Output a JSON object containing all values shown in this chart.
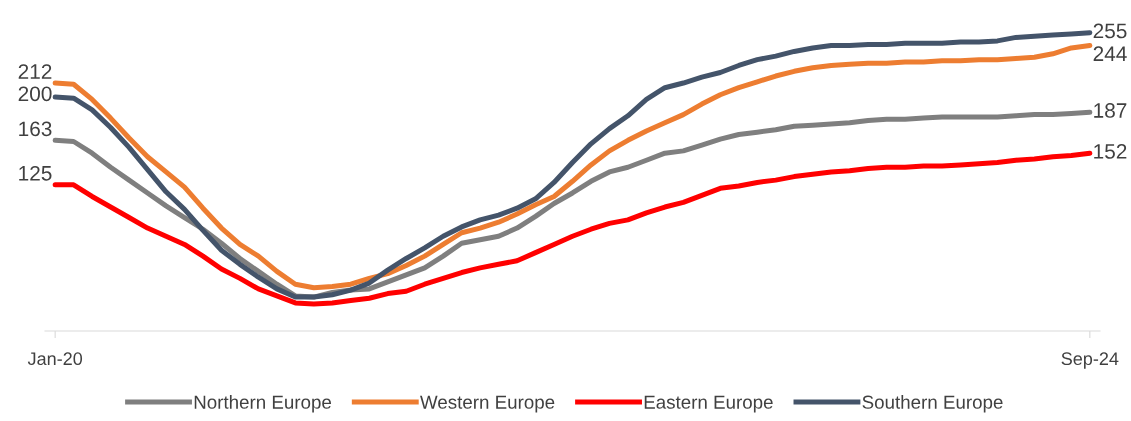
{
  "chart_data": {
    "type": "line",
    "categories": [
      "Jan-20",
      null,
      null,
      null,
      null,
      null,
      null,
      null,
      null,
      null,
      null,
      null,
      null,
      null,
      null,
      null,
      null,
      null,
      null,
      null,
      null,
      null,
      null,
      null,
      null,
      null,
      null,
      null,
      null,
      null,
      null,
      null,
      null,
      null,
      null,
      null,
      null,
      null,
      null,
      null,
      null,
      null,
      null,
      null,
      null,
      null,
      null,
      null,
      null,
      null,
      null,
      null,
      null,
      null,
      null,
      null,
      "Sep-24"
    ],
    "tick_labels": "x",
    "legend": "bottom",
    "series": [
      {
        "name": "Northern Europe",
        "color": "#7f7f7f",
        "values": [
          163,
          162,
          152,
          140,
          129,
          118,
          107,
          97,
          87,
          75,
          62,
          51,
          40,
          30,
          29,
          33,
          35,
          36,
          42,
          48,
          54,
          64,
          75,
          78,
          81,
          88,
          98,
          109,
          118,
          128,
          136,
          140,
          146,
          152,
          154,
          159,
          164,
          168,
          170,
          172,
          175,
          176,
          177,
          178,
          180,
          181,
          181,
          182,
          183,
          183,
          183,
          183,
          184,
          185,
          185,
          186,
          187
        ],
        "value_labels": [
          "163",
          null,
          null,
          null,
          null,
          null,
          null,
          null,
          null,
          null,
          null,
          null,
          null,
          null,
          null,
          null,
          null,
          null,
          null,
          null,
          null,
          null,
          null,
          null,
          null,
          null,
          null,
          null,
          null,
          null,
          null,
          null,
          null,
          null,
          null,
          null,
          null,
          null,
          null,
          null,
          null,
          null,
          null,
          null,
          null,
          null,
          null,
          null,
          null,
          null,
          null,
          null,
          null,
          null,
          null,
          null,
          "187"
        ]
      },
      {
        "name": "Western Europe",
        "color": "#ed7d31",
        "values": [
          212,
          211,
          198,
          182,
          165,
          149,
          136,
          123,
          105,
          88,
          74,
          64,
          51,
          40,
          37,
          38,
          40,
          45,
          49,
          56,
          64,
          74,
          84,
          88,
          93,
          100,
          108,
          115,
          128,
          142,
          154,
          163,
          171,
          178,
          185,
          194,
          202,
          208,
          213,
          218,
          222,
          225,
          227,
          228,
          229,
          229,
          230,
          230,
          231,
          231,
          232,
          232,
          233,
          234,
          237,
          242,
          244
        ],
        "value_labels": [
          "212",
          null,
          null,
          null,
          null,
          null,
          null,
          null,
          null,
          null,
          null,
          null,
          null,
          null,
          null,
          null,
          null,
          null,
          null,
          null,
          null,
          null,
          null,
          null,
          null,
          null,
          null,
          null,
          null,
          null,
          null,
          null,
          null,
          null,
          null,
          null,
          null,
          null,
          null,
          null,
          null,
          null,
          null,
          null,
          null,
          null,
          null,
          null,
          null,
          null,
          null,
          null,
          null,
          null,
          null,
          null,
          "244"
        ]
      },
      {
        "name": "Eastern Europe",
        "color": "#ff0000",
        "values": [
          125,
          125,
          115,
          106,
          97,
          88,
          81,
          74,
          64,
          53,
          45,
          36,
          30,
          24,
          23,
          24,
          26,
          28,
          32,
          34,
          40,
          45,
          50,
          54,
          57,
          60,
          67,
          74,
          81,
          87,
          92,
          95,
          101,
          106,
          110,
          116,
          122,
          124,
          127,
          129,
          132,
          134,
          136,
          137,
          139,
          140,
          140,
          141,
          141,
          142,
          143,
          144,
          146,
          147,
          149,
          150,
          152
        ],
        "value_labels": [
          "125",
          null,
          null,
          null,
          null,
          null,
          null,
          null,
          null,
          null,
          null,
          null,
          null,
          null,
          null,
          null,
          null,
          null,
          null,
          null,
          null,
          null,
          null,
          null,
          null,
          null,
          null,
          null,
          null,
          null,
          null,
          null,
          null,
          null,
          null,
          null,
          null,
          null,
          null,
          null,
          null,
          null,
          null,
          null,
          null,
          null,
          null,
          null,
          null,
          null,
          null,
          null,
          null,
          null,
          null,
          null,
          "152"
        ]
      },
      {
        "name": "Southern Europe",
        "color": "#44546a",
        "values": [
          200,
          199,
          189,
          174,
          157,
          138,
          119,
          104,
          86,
          69,
          57,
          46,
          36,
          29,
          29,
          31,
          35,
          41,
          52,
          62,
          71,
          81,
          89,
          95,
          99,
          105,
          113,
          127,
          144,
          160,
          173,
          184,
          198,
          208,
          212,
          217,
          221,
          227,
          232,
          235,
          239,
          242,
          244,
          244,
          245,
          245,
          246,
          246,
          246,
          247,
          247,
          248,
          251,
          252,
          253,
          254,
          255
        ],
        "value_labels": [
          "200",
          null,
          null,
          null,
          null,
          null,
          null,
          null,
          null,
          null,
          null,
          null,
          null,
          null,
          null,
          null,
          null,
          null,
          null,
          null,
          null,
          null,
          null,
          null,
          null,
          null,
          null,
          null,
          null,
          null,
          null,
          null,
          null,
          null,
          null,
          null,
          null,
          null,
          null,
          null,
          null,
          null,
          null,
          null,
          null,
          null,
          null,
          null,
          null,
          null,
          null,
          null,
          null,
          null,
          null,
          null,
          "255"
        ]
      }
    ]
  }
}
